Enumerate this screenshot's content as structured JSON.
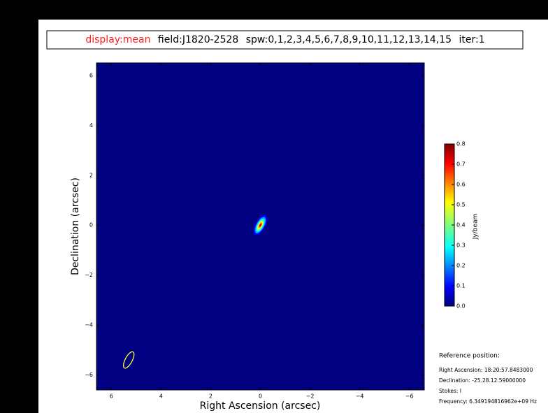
{
  "chart_data": {
    "type": "image",
    "title_parts": [
      "display:mean",
      "field:J1820-2528",
      "spw:0,1,2,3,4,5,6,7,8,9,10,11,12,13,14,15",
      "iter:1"
    ],
    "x_label": "Right Ascension (arcsec)",
    "y_label": "Declination (arcsec)",
    "xlim": [
      6.6,
      -6.6
    ],
    "ylim": [
      -6.6,
      6.5
    ],
    "xticks": [
      6,
      4,
      2,
      0,
      {
        "value": -2,
        "label": "−2"
      },
      {
        "value": -4,
        "label": "−4"
      },
      {
        "value": -6,
        "label": "−6"
      }
    ],
    "yticks": [
      6,
      4,
      2,
      0,
      {
        "value": -2,
        "label": "−2"
      },
      {
        "value": -4,
        "label": "−4"
      },
      {
        "value": -6,
        "label": "−6"
      }
    ],
    "source": {
      "x": 0,
      "y": 0,
      "peak": 0.8
    },
    "beam": {
      "x": 5.3,
      "y": -5.4
    },
    "colorbar": {
      "label": "Jy/beam",
      "lim": [
        0,
        0.8
      ],
      "ticks": [
        {
          "value": 0,
          "label": "0.0"
        },
        0.1,
        0.2,
        0.3,
        0.4,
        0.5,
        0.6,
        0.7,
        0.8
      ]
    },
    "reference": {
      "title": "Reference position:",
      "lines": [
        "Right Ascension: 18:20:57.8483000",
        "Declination: -25.28.12.59000000",
        "Stokes: I",
        "Frequency: 6.349194816962e+09 Hz"
      ]
    }
  }
}
